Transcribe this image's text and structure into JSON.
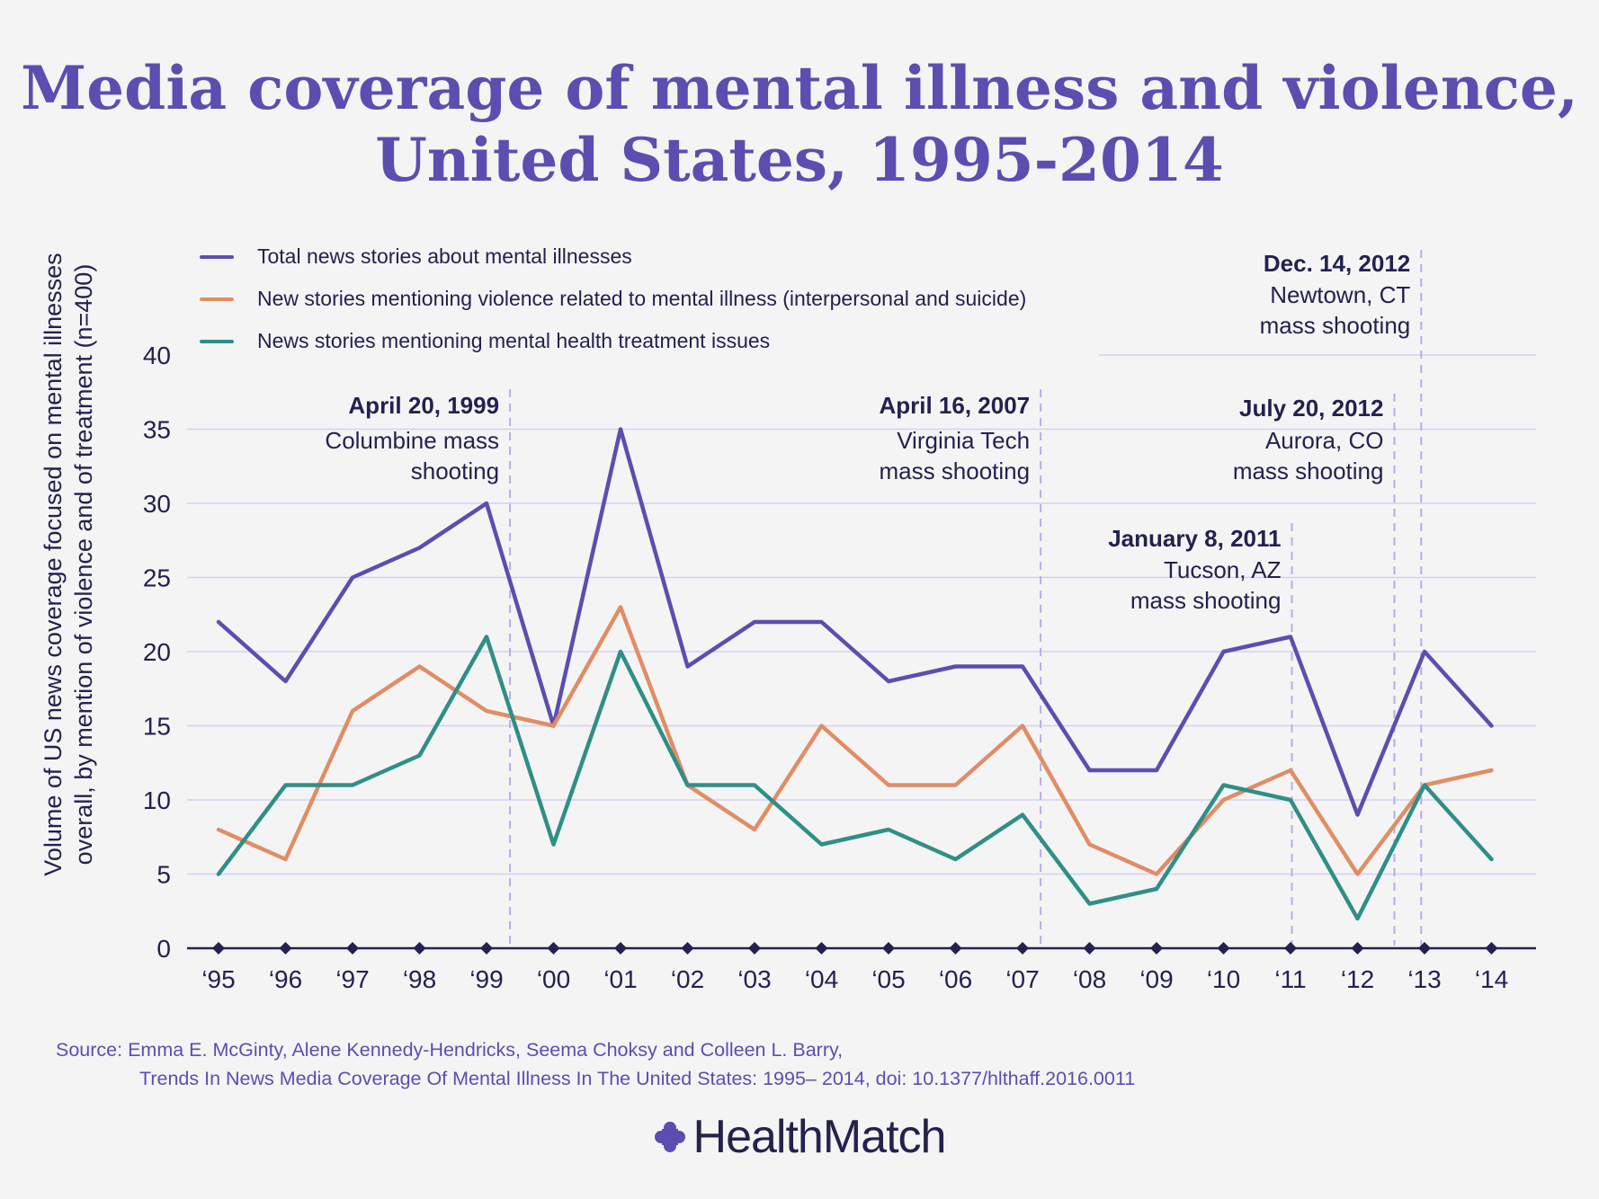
{
  "title": {
    "line1": "Media coverage of mental illness and violence,",
    "line2": "United States, 1995-2014"
  },
  "legend": [
    {
      "label": "Total news stories about mental illnesses",
      "color": "#5b4eb0"
    },
    {
      "label": "New stories mentioning violence related to mental illness (interpersonal and suicide)",
      "color": "#e08d66"
    },
    {
      "label": "News stories mentioning mental health treatment issues",
      "color": "#2f8f87"
    }
  ],
  "y_axis_label": {
    "line1": "Volume of US news coverage focused on mental illnesses",
    "line2": "overall, by mention of violence and of treatment (n=400)"
  },
  "chart_data": {
    "type": "line",
    "x": [
      "‘95",
      "‘96",
      "‘97",
      "‘98",
      "‘99",
      "‘00",
      "‘01",
      "‘02",
      "‘03",
      "‘04",
      "‘05",
      "‘06",
      "‘07",
      "‘08",
      "‘09",
      "‘10",
      "‘11",
      "‘12",
      "‘13",
      "‘14"
    ],
    "series": [
      {
        "name": "Total news stories about mental illnesses",
        "color": "#5b4eb0",
        "values": [
          22,
          18,
          25,
          27,
          30,
          15,
          35,
          19,
          22,
          22,
          18,
          19,
          19,
          12,
          12,
          20,
          21,
          9,
          20,
          15
        ]
      },
      {
        "name": "New stories mentioning violence related to mental illness (interpersonal and suicide)",
        "color": "#e08d66",
        "values": [
          8,
          6,
          16,
          19,
          16,
          15,
          23,
          11,
          8,
          15,
          11,
          11,
          15,
          7,
          5,
          10,
          12,
          5,
          11,
          12
        ]
      },
      {
        "name": "News stories mentioning mental health treatment issues",
        "color": "#2f8f87",
        "values": [
          5,
          11,
          11,
          13,
          21,
          7,
          20,
          11,
          11,
          7,
          8,
          6,
          9,
          3,
          4,
          11,
          10,
          2,
          11,
          6
        ]
      }
    ],
    "yticks": [
      "0",
      "5",
      "10",
      "15",
      "20",
      "25",
      "30",
      "35",
      "40"
    ],
    "ylim": [
      0,
      40
    ],
    "grid": true,
    "annotations": [
      {
        "date": "April 20, 1999",
        "line2": "Columbine mass",
        "line3": "shooting",
        "x_pos": 4.35
      },
      {
        "date": "April 16, 2007",
        "line2": "Virginia Tech",
        "line3": "mass shooting",
        "x_pos": 12.27
      },
      {
        "date": "January 8, 2011",
        "line2": "Tucson, AZ",
        "line3": "mass shooting",
        "x_pos": 16.02
      },
      {
        "date": "July 20, 2012",
        "line2": "Aurora, CO",
        "line3": "mass shooting",
        "x_pos": 17.55
      },
      {
        "date": "Dec. 14, 2012",
        "line2": "Newtown, CT",
        "line3": "mass shooting",
        "x_pos": 17.95
      }
    ]
  },
  "source": {
    "line1": "Source: Emma E. McGinty, Alene Kennedy-Hendricks, Seema Choksy and Colleen L. Barry,",
    "line2": "Trends In News Media Coverage Of Mental Illness In The United States: 1995– 2014, doi: 10.1377/hlthaff.2016.0011"
  },
  "brand": {
    "name": "HealthMatch",
    "color": "#5b4eb0"
  }
}
